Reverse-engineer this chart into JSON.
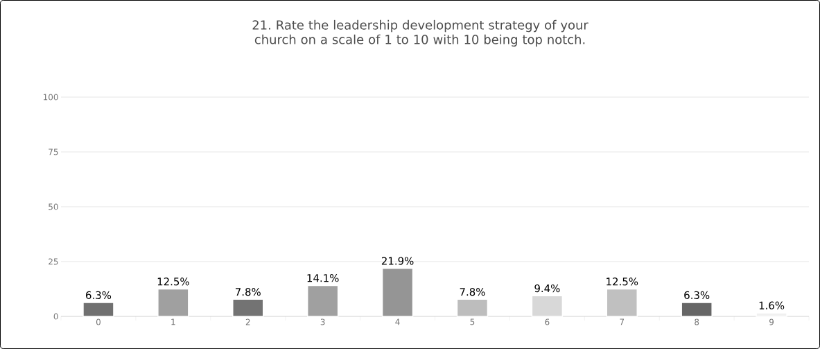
{
  "chart_data": {
    "type": "bar",
    "title": "21. Rate the leadership development strategy of your church on a scale of 1 to 10 with 10 being top notch.",
    "categories": [
      "0",
      "1",
      "2",
      "3",
      "4",
      "5",
      "6",
      "7",
      "8",
      "9"
    ],
    "values": [
      6.3,
      12.5,
      7.8,
      14.1,
      21.9,
      7.8,
      9.4,
      12.5,
      6.3,
      1.6
    ],
    "colors": [
      "#707070",
      "#a0a0a0",
      "#737373",
      "#a0a0a0",
      "#959595",
      "#bdbdbd",
      "#d8d8d8",
      "#c0c0c0",
      "#666666",
      "#f0f0f0"
    ],
    "value_labels": [
      "6.3%",
      "12.5%",
      "7.8%",
      "14.1%",
      "21.9%",
      "7.8%",
      "9.4%",
      "12.5%",
      "6.3%",
      "1.6%"
    ],
    "ylim": [
      0,
      100
    ],
    "yticks": [
      0,
      25,
      50,
      75,
      100
    ],
    "grid": "y"
  }
}
